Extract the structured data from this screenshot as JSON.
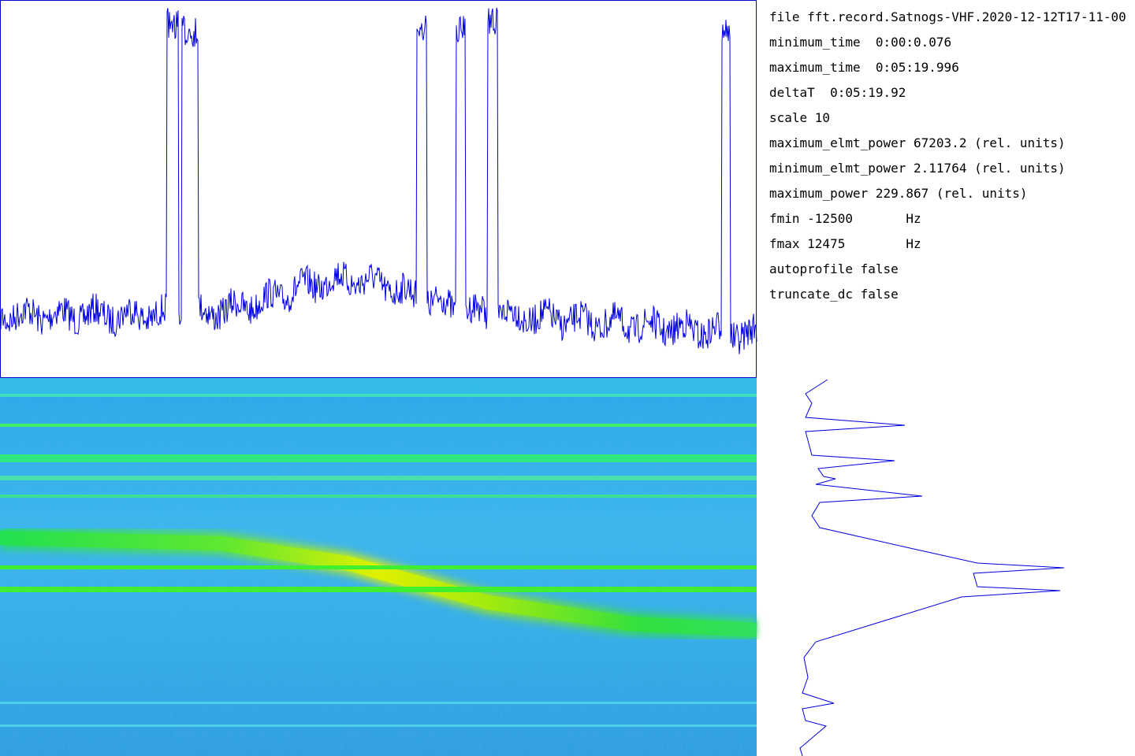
{
  "info": {
    "lines": [
      "file fft.record.Satnogs-VHF.2020-12-12T17-11-00",
      "minimum_time  0:00:0.076",
      "maximum_time  0:05:19.996",
      "deltaT  0:05:19.92",
      "scale 10",
      "maximum_elmt_power 67203.2 (rel. units)",
      "minimum_elmt_power 2.11764 (rel. units)",
      "maximum_power 229.867 (rel. units)",
      "fmin -12500       Hz",
      "fmax 12475        Hz",
      "autoprofile false",
      "truncate_dc false"
    ]
  }
}
